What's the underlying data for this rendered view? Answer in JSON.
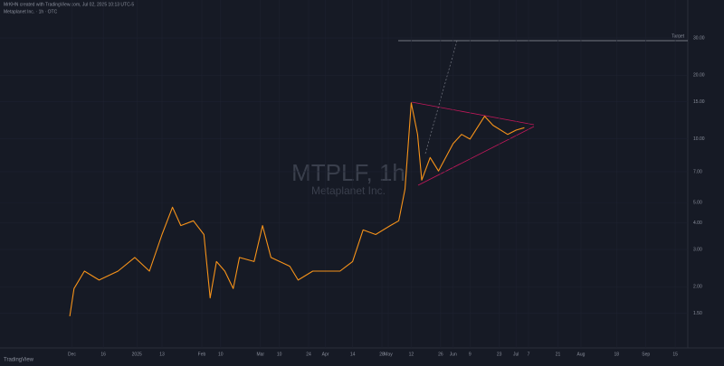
{
  "header": {
    "credit": "MrKHN created with TradingView.com, Jul 02, 2025 10:13 UTC-5",
    "symbol": "Metaplanet Inc. · 1h · OTC",
    "brand": "TradingView"
  },
  "chart_data": {
    "type": "line",
    "title": "MTPLF, 1h",
    "subtitle": "Metaplanet Inc.",
    "annotation": "Target",
    "log_scale": true,
    "grid": true,
    "xlim": [
      -30,
      294
    ],
    "ylim": [
      1.1,
      38
    ],
    "xticks": [
      {
        "value": 0,
        "label": "Dec"
      },
      {
        "value": 15,
        "label": "16"
      },
      {
        "value": 31,
        "label": "2025"
      },
      {
        "value": 43,
        "label": "13"
      },
      {
        "value": 62,
        "label": "Feb"
      },
      {
        "value": 71,
        "label": "10"
      },
      {
        "value": 90,
        "label": "Mar"
      },
      {
        "value": 99,
        "label": "10"
      },
      {
        "value": 113,
        "label": "24"
      },
      {
        "value": 121,
        "label": "Apr"
      },
      {
        "value": 134,
        "label": "14"
      },
      {
        "value": 148,
        "label": "28"
      },
      {
        "value": 151,
        "label": "May"
      },
      {
        "value": 162,
        "label": "12"
      },
      {
        "value": 176,
        "label": "26"
      },
      {
        "value": 182,
        "label": "Jun"
      },
      {
        "value": 190,
        "label": "9"
      },
      {
        "value": 204,
        "label": "23"
      },
      {
        "value": 212,
        "label": "Jul"
      },
      {
        "value": 218,
        "label": "7"
      },
      {
        "value": 232,
        "label": "21"
      },
      {
        "value": 243,
        "label": "Aug"
      },
      {
        "value": 260,
        "label": "18"
      },
      {
        "value": 274,
        "label": "Sep"
      },
      {
        "value": 288,
        "label": "15"
      }
    ],
    "yticks": [
      {
        "value": 1.5,
        "label": "1.50"
      },
      {
        "value": 2,
        "label": "2.00"
      },
      {
        "value": 3,
        "label": "3.00"
      },
      {
        "value": 4,
        "label": "4.00"
      },
      {
        "value": 5,
        "label": "5.00"
      },
      {
        "value": 7,
        "label": "7.00"
      },
      {
        "value": 10,
        "label": "10.00"
      },
      {
        "value": 15,
        "label": "15.00"
      },
      {
        "value": 20,
        "label": "20.00"
      },
      {
        "value": 30,
        "label": "30.00"
      }
    ],
    "series": [
      {
        "name": "MTPLF",
        "color": "#f7931a",
        "x": [
          -1,
          1,
          6,
          13,
          22,
          30,
          37,
          43,
          48,
          52,
          58,
          63,
          66,
          69,
          73,
          77,
          80,
          87,
          91,
          95,
          104,
          108,
          115,
          121,
          128,
          134,
          139,
          145,
          152,
          156,
          159,
          162,
          165,
          167,
          171,
          175,
          182,
          186,
          190,
          197,
          201,
          208,
          212,
          216
        ],
        "values": [
          1.45,
          1.96,
          2.37,
          2.15,
          2.37,
          2.75,
          2.37,
          3.53,
          4.75,
          3.89,
          4.1,
          3.53,
          1.77,
          2.63,
          2.37,
          1.96,
          2.75,
          2.63,
          3.89,
          2.75,
          2.5,
          2.15,
          2.37,
          2.37,
          2.37,
          2.63,
          3.71,
          3.53,
          3.89,
          4.1,
          5.78,
          14.8,
          10.5,
          6.38,
          8.16,
          7.05,
          9.5,
          10.5,
          9.98,
          12.8,
          11.6,
          10.5,
          11.0,
          11.3
        ]
      }
    ]
  }
}
